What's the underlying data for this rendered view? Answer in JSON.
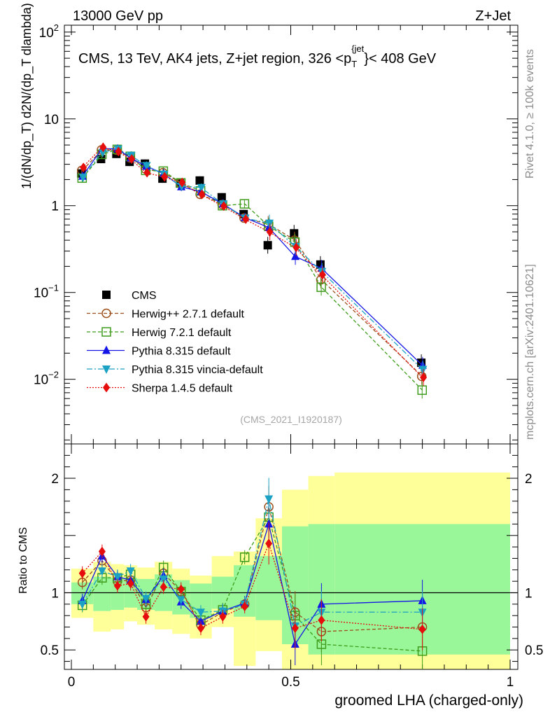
{
  "header": {
    "left": "13000 GeV pp",
    "right": "Z+Jet"
  },
  "side_text": {
    "rivet": "Rivet 4.1.0, ≥ 100k events",
    "mcplots": "mcplots.cern.ch [arXiv:2401.10621]"
  },
  "watermark": "(CMS_2021_I1920187)",
  "chart_data": [
    {
      "type": "scatter",
      "panel": "main",
      "title": "CMS, 13 TeV, AK4 jets, Z+jet region, 326 <p_T^{jet}< 408 GeV",
      "title_main": "CMS, 13 TeV, AK4 jets, Z+jet region, 326 <p",
      "title_sub": "T",
      "title_sup": "{jet",
      "title_end": "}< 408 GeV",
      "ylabel": "1/(dN/dp_T) d2N/(dp_T dlambda)",
      "yscale": "log",
      "ylim": [
        0.0018,
        120
      ],
      "xlim": [
        0,
        1
      ],
      "ytick_labels": [
        "10",
        "1"
      ],
      "ytick_pow_labels": [
        {
          "base": "10",
          "exp": "2",
          "value": 100
        },
        {
          "base": "10",
          "exp": "−1",
          "value": 0.1
        },
        {
          "base": "10",
          "exp": "−2",
          "value": 0.01
        }
      ],
      "x_edges": [
        0.0,
        0.05,
        0.09,
        0.12,
        0.15,
        0.19,
        0.23,
        0.27,
        0.32,
        0.37,
        0.42,
        0.48,
        0.54,
        0.6,
        1.0
      ],
      "x": [
        0.025,
        0.07,
        0.105,
        0.135,
        0.17,
        0.21,
        0.25,
        0.295,
        0.345,
        0.395,
        0.45,
        0.51,
        0.57,
        0.8
      ],
      "series": [
        {
          "name": "CMS",
          "style": "data",
          "color": "#000000",
          "marker": "square-filled",
          "values": [
            2.35,
            3.45,
            3.95,
            3.2,
            3.05,
            2.05,
            1.8,
            1.95,
            1.25,
            0.8,
            0.35,
            0.48,
            0.21,
            0.0155
          ]
        },
        {
          "name": "Herwig++ 2.7.1 default",
          "style": "dashed",
          "color": "#9c4f1c",
          "marker": "circle-open",
          "values": [
            2.55,
            4.4,
            4.35,
            3.55,
            2.65,
            2.4,
            1.82,
            1.35,
            1.03,
            0.72,
            0.61,
            0.4,
            0.14,
            0.0108
          ]
        },
        {
          "name": "Herwig 7.2.1 default",
          "style": "dashed",
          "color": "#3f9c1c",
          "marker": "square-open",
          "values": [
            2.08,
            3.9,
            4.45,
            3.7,
            2.55,
            2.5,
            1.83,
            1.48,
            1.0,
            1.05,
            0.58,
            0.38,
            0.115,
            0.0075
          ]
        },
        {
          "name": "Pythia 8.315 default",
          "style": "solid",
          "color": "#1515e6",
          "marker": "triangle-up",
          "values": [
            2.18,
            4.55,
            4.5,
            3.55,
            2.85,
            2.35,
            1.65,
            1.45,
            1.05,
            0.73,
            0.56,
            0.26,
            0.19,
            0.0145
          ]
        },
        {
          "name": "Pythia 8.315 vincia-default",
          "style": "dashdot",
          "color": "#1ba1c4",
          "marker": "triangle-down",
          "values": [
            2.12,
            4.1,
            4.5,
            3.8,
            2.9,
            2.3,
            1.68,
            1.62,
            1.05,
            0.72,
            0.63,
            0.34,
            0.175,
            0.013
          ]
        },
        {
          "name": "Sherpa 1.4.5 default",
          "style": "dotted",
          "color": "#e60d0d",
          "marker": "diamond",
          "values": [
            2.75,
            4.7,
            4.2,
            3.45,
            2.4,
            2.15,
            1.85,
            1.35,
            0.99,
            0.7,
            0.5,
            0.33,
            0.16,
            0.0105
          ]
        }
      ]
    },
    {
      "type": "scatter",
      "panel": "ratio",
      "ylabel": "Ratio to CMS",
      "xlabel": "groomed LHA (charged-only)",
      "xlim": [
        0,
        1
      ],
      "ylim": [
        0.33,
        2.3
      ],
      "xtick_labels": [
        "0",
        "0.5",
        "1"
      ],
      "ytick_labels": [
        "0.5",
        "1",
        "2"
      ],
      "band_yellow_lo": [
        0.78,
        0.66,
        0.68,
        0.75,
        0.72,
        0.68,
        0.64,
        0.6,
        0.7,
        0.36,
        0.49,
        0.3,
        0.3,
        0.3
      ],
      "band_yellow_hi": [
        1.21,
        1.27,
        1.25,
        1.24,
        1.22,
        1.27,
        1.21,
        1.15,
        1.32,
        1.36,
        1.65,
        1.9,
        2.02,
        2.05
      ],
      "band_green_lo": [
        0.9,
        0.84,
        0.85,
        0.87,
        0.85,
        0.84,
        0.81,
        0.78,
        0.86,
        0.79,
        0.76,
        0.55,
        0.46,
        0.46
      ],
      "band_green_hi": [
        1.09,
        1.14,
        1.13,
        1.13,
        1.12,
        1.16,
        1.11,
        1.08,
        1.14,
        1.24,
        1.32,
        1.58,
        1.6,
        1.6
      ],
      "series": [
        {
          "name": "Herwig++ 2.7.1 default",
          "values": [
            1.09,
            1.28,
            1.1,
            1.11,
            0.87,
            1.17,
            1.01,
            0.72,
            0.83,
            0.9,
            1.75,
            0.83,
            0.66,
            0.7
          ]
        },
        {
          "name": "Herwig 7.2.1 default",
          "values": [
            0.89,
            1.13,
            1.13,
            1.16,
            0.9,
            1.22,
            1.01,
            0.76,
            0.85,
            1.31,
            1.66,
            0.8,
            0.55,
            0.49
          ]
        },
        {
          "name": "Pythia 8.315 default",
          "values": [
            0.93,
            1.32,
            1.14,
            1.11,
            0.94,
            1.15,
            0.92,
            0.75,
            0.84,
            0.91,
            1.6,
            0.55,
            0.9,
            0.93
          ]
        },
        {
          "name": "Pythia 8.315 vincia-default",
          "values": [
            0.9,
            1.19,
            1.14,
            1.19,
            0.95,
            1.12,
            0.94,
            0.83,
            0.84,
            0.9,
            1.82,
            0.71,
            0.83,
            0.83
          ]
        },
        {
          "name": "Sherpa 1.4.5 default",
          "values": [
            1.17,
            1.36,
            1.06,
            1.08,
            0.79,
            1.05,
            1.03,
            0.69,
            0.79,
            0.88,
            1.43,
            0.69,
            0.76,
            0.68
          ]
        }
      ]
    }
  ]
}
